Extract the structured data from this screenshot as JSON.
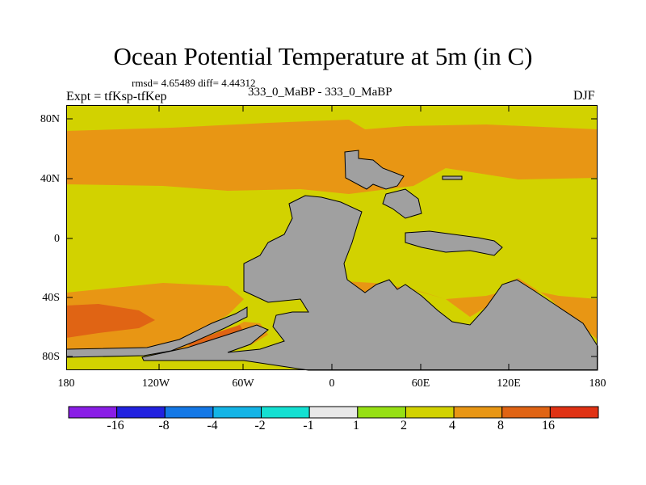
{
  "title": "Ocean Potential Temperature at 5m (in C)",
  "stats_line": "rmsd= 4.65489 diff= 4.44312",
  "expt_line": "Expt = tfKsp-tfKep",
  "case_line": "333_0_MaBP - 333_0_MaBP",
  "season": "DJF",
  "y_axis_labels": [
    "80N",
    "40N",
    "0",
    "40S",
    "80S"
  ],
  "x_axis_labels": [
    "180",
    "120W",
    "60W",
    "0",
    "60E",
    "120E",
    "180"
  ],
  "colorbar": {
    "labels": [
      "-16",
      "-8",
      "-4",
      "-2",
      "-1",
      "1",
      "2",
      "4",
      "8",
      "16"
    ],
    "colors": [
      "#8a1ee6",
      "#2222e0",
      "#1478e6",
      "#14b4e6",
      "#14e0d2",
      "#e8e8e8",
      "#96e014",
      "#d2d200",
      "#e89614",
      "#e06414",
      "#e03214"
    ]
  },
  "map_colors": {
    "background": "#d2d200",
    "warm_2_4": "#d2d200",
    "warm_4_8": "#e89614",
    "warm_8_16": "#e06414",
    "land": "#a0a0a0"
  }
}
